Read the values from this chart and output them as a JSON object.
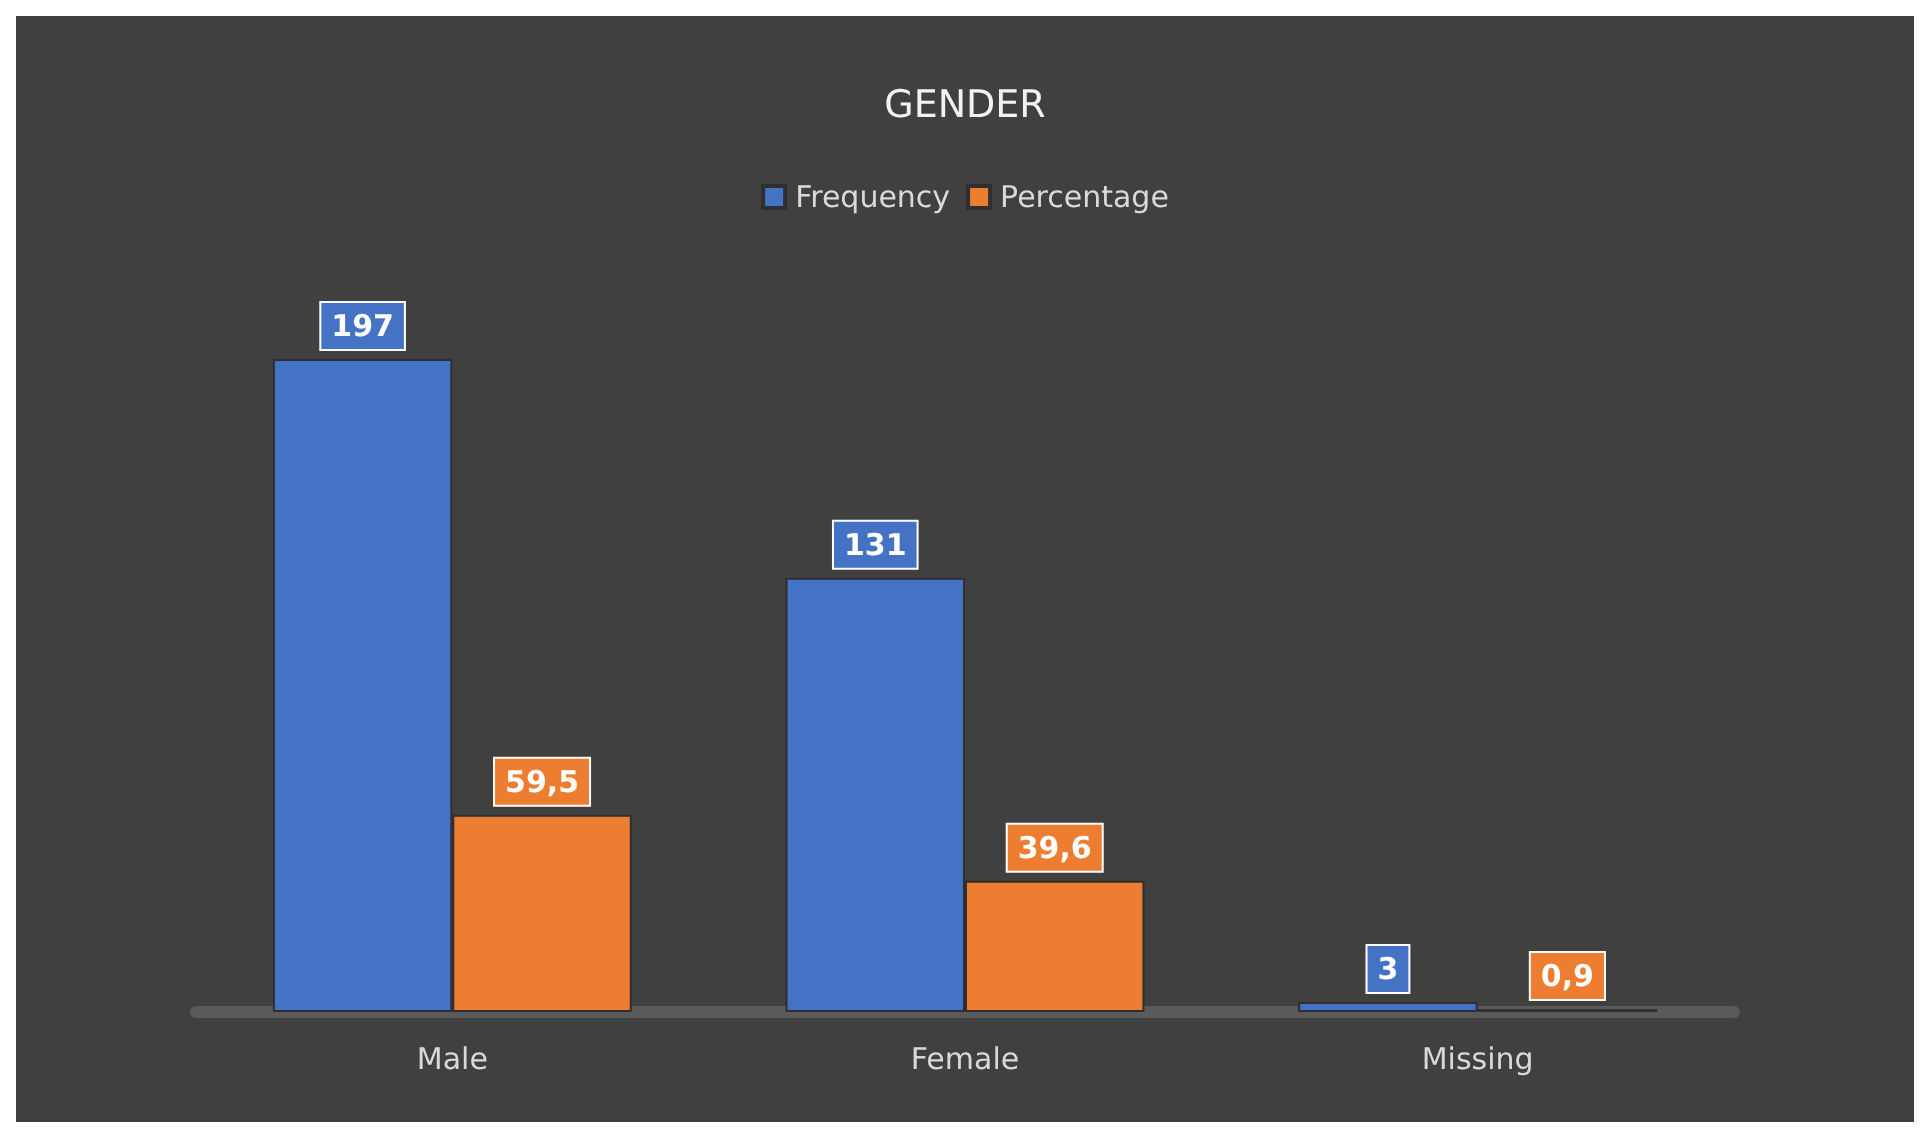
{
  "chart_data": {
    "type": "bar",
    "title": "GENDER",
    "categories": [
      "Male",
      "Female",
      "Missing"
    ],
    "series": [
      {
        "name": "Frequency",
        "color": "#4472c4",
        "values": [
          197,
          131,
          3
        ],
        "value_labels": [
          "197",
          "131",
          "3"
        ]
      },
      {
        "name": "Percentage",
        "color": "#ed7d31",
        "values": [
          59.5,
          39.6,
          0.9
        ],
        "value_labels": [
          "59,5",
          "39,6",
          "0,9"
        ]
      }
    ],
    "legend": "top"
  }
}
